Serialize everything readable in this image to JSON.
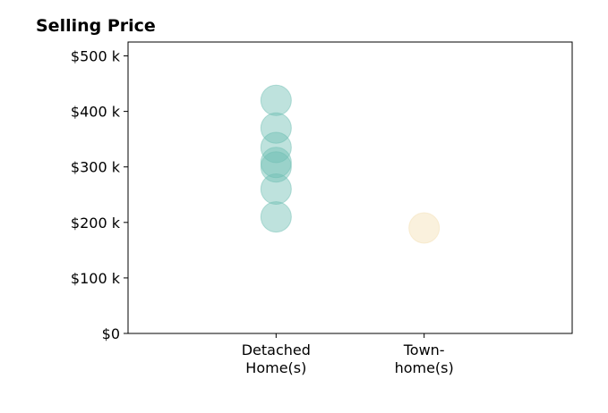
{
  "chart_data": {
    "type": "scatter",
    "title": "Selling Price",
    "xlabel": "",
    "ylabel": "",
    "categories": [
      [
        "Detached",
        "Home(s)"
      ],
      [
        "Town-",
        "home(s)"
      ]
    ],
    "xlim": [
      -1,
      2
    ],
    "ylim": [
      0,
      525000
    ],
    "yticks": [
      0,
      100000,
      200000,
      300000,
      400000,
      500000
    ],
    "ytick_labels": [
      "$0",
      "$100 k",
      "$200 k",
      "$300 k",
      "$400 k",
      "$500 k"
    ],
    "grid": false,
    "legend": false,
    "series": [
      {
        "category_index": 0,
        "color": "#6fbfb3",
        "values": [
          420000,
          370000,
          335000,
          308000,
          300000,
          260000,
          210000
        ]
      },
      {
        "category_index": 1,
        "color": "#f3dfb3",
        "values": [
          190000
        ]
      }
    ]
  }
}
